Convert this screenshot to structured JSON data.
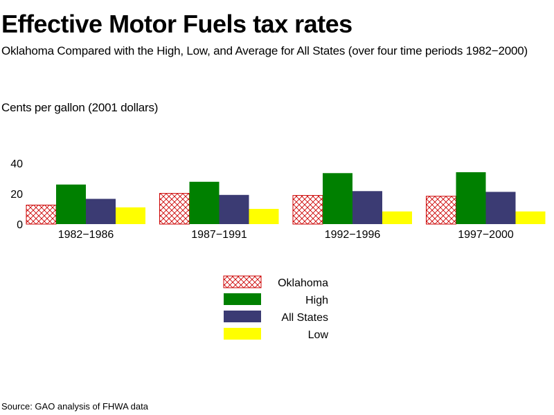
{
  "title": "Effective Motor Fuels tax rates",
  "subtitle": "Oklahoma Compared with the High, Low, and Average for All States (over four time periods 1982−2000)",
  "source": "Source: GAO analysis of FHWA data",
  "chart_data": {
    "type": "bar",
    "title": "Effective Motor Fuels tax rates",
    "ylabel": "Cents per gallon (2001 dollars)",
    "xlabel": "",
    "ylim": [
      0,
      40
    ],
    "yticks": [
      0,
      20,
      40
    ],
    "grid": false,
    "legend_position": "bottom-center",
    "categories": [
      "1982−1986",
      "1987−1991",
      "1992−1996",
      "1997−2000"
    ],
    "series": [
      {
        "name": "Oklahoma",
        "values": [
          12.5,
          20.2,
          18.8,
          18.3
        ],
        "color": "#cc0000",
        "pattern": "crosshatch"
      },
      {
        "name": "High",
        "values": [
          26,
          27.8,
          33.5,
          34.1
        ],
        "color": "#008000",
        "pattern": "solid"
      },
      {
        "name": "All States",
        "values": [
          16.6,
          19.2,
          21.7,
          21.2
        ],
        "color": "#3b3b73",
        "pattern": "solid"
      },
      {
        "name": "Low",
        "values": [
          11,
          10,
          8.3,
          8.3
        ],
        "color": "#ffff00",
        "pattern": "solid"
      }
    ]
  }
}
